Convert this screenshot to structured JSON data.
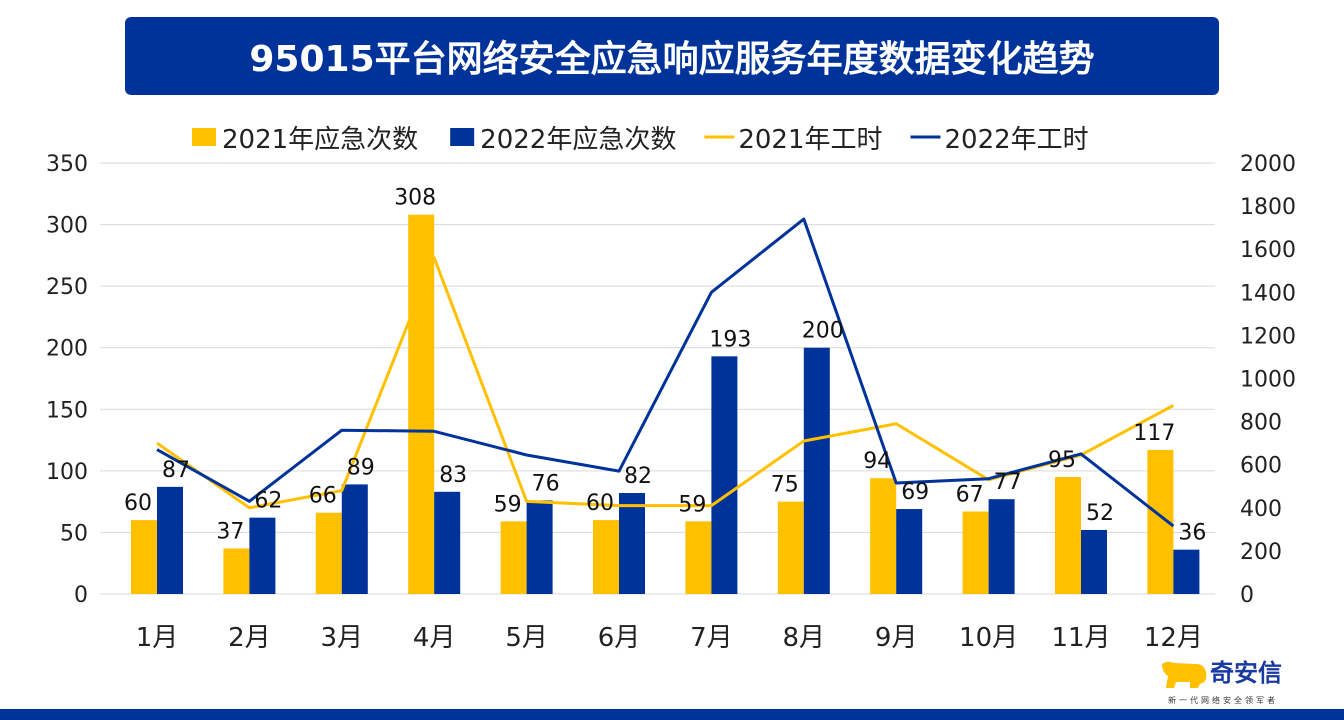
{
  "chart_data": {
    "type": "bar",
    "title": "95015平台网络安全应急响应服务年度数据变化趋势",
    "categories": [
      "1月",
      "2月",
      "3月",
      "4月",
      "5月",
      "6月",
      "7月",
      "8月",
      "9月",
      "10月",
      "11月",
      "12月"
    ],
    "series": [
      {
        "name": "2021年应急次数",
        "kind": "bar",
        "axis": "left",
        "color": "#FFC000",
        "values": [
          60,
          37,
          66,
          308,
          59,
          60,
          59,
          75,
          94,
          67,
          95,
          117
        ]
      },
      {
        "name": "2022年应急次数",
        "kind": "bar",
        "axis": "left",
        "color": "#003399",
        "values": [
          87,
          62,
          89,
          83,
          76,
          82,
          193,
          200,
          69,
          77,
          52,
          36
        ]
      },
      {
        "name": "2021年工时",
        "kind": "line",
        "axis": "right",
        "color": "#FFC000",
        "values": [
          700,
          400,
          480,
          1560,
          430,
          410,
          410,
          710,
          790,
          530,
          645,
          875
        ]
      },
      {
        "name": "2022年工时",
        "kind": "line",
        "axis": "right",
        "color": "#003399",
        "values": [
          670,
          430,
          760,
          755,
          645,
          570,
          1400,
          1740,
          515,
          535,
          650,
          315
        ]
      }
    ],
    "y_left": {
      "range": [
        0,
        350
      ],
      "ticks": [
        "0",
        "50",
        "100",
        "150",
        "200",
        "250",
        "300",
        "350"
      ]
    },
    "y_right": {
      "range": [
        0,
        2000
      ],
      "ticks": [
        "0",
        "200",
        "400",
        "600",
        "800",
        "1000",
        "1200",
        "1400",
        "1600",
        "1800",
        "2000"
      ]
    },
    "grid": true,
    "legend_position": "top"
  },
  "logo": {
    "name": "奇安信",
    "tagline": "新一代网络安全领军者"
  }
}
